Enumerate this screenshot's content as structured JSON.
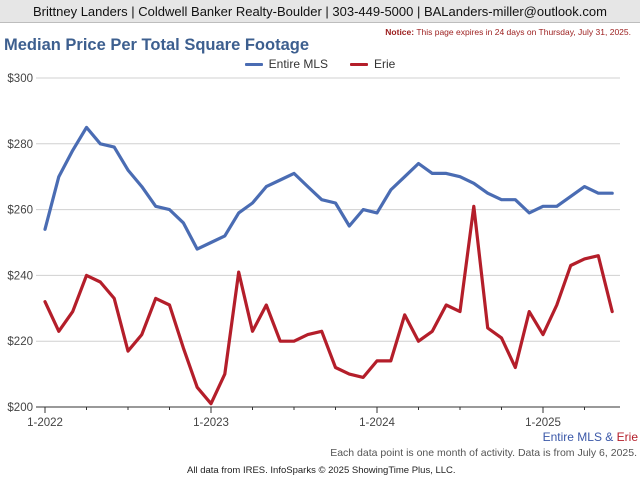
{
  "header": {
    "contact": "Brittney Landers | Coldwell Banker Realty-Boulder | 303-449-5000 | BALanders-miller@outlook.com"
  },
  "notice": {
    "label": "Notice:",
    "text": "This page expires in 24 days on Thursday, July 31, 2025."
  },
  "chart_title": "Median Price Per Total Square Footage",
  "footer": {
    "series_legend_a": "Entire MLS",
    "series_legend_amp": "&",
    "series_legend_b": "Erie",
    "note": "Each data point is one month of activity. Data is from July 6, 2025.",
    "source": "All data from IRES. InfoSparks © 2025 ShowingTime Plus, LLC."
  },
  "colors": {
    "mls": "#4a6cb3",
    "erie": "#b41e2a",
    "grid": "#d0d0d0",
    "axis": "#333333"
  },
  "chart_data": {
    "type": "line",
    "title": "Median Price Per Total Square Footage",
    "xlabel": "",
    "ylabel": "",
    "x_ticks": [
      "1-2022",
      "1-2023",
      "1-2024",
      "1-2025"
    ],
    "y_ticks": [
      "$200",
      "$220",
      "$240",
      "$260",
      "$280",
      "$300"
    ],
    "ylim": [
      200,
      300
    ],
    "grid": true,
    "legend": "top-center",
    "x_start": "2022-01",
    "series": [
      {
        "name": "Entire MLS",
        "values": [
          254,
          270,
          278,
          285,
          280,
          279,
          272,
          267,
          261,
          260,
          256,
          248,
          250,
          252,
          259,
          262,
          267,
          269,
          271,
          267,
          263,
          262,
          255,
          260,
          259,
          266,
          270,
          274,
          271,
          271,
          270,
          268,
          265,
          263,
          263,
          259,
          261,
          261,
          264,
          267,
          265,
          265
        ]
      },
      {
        "name": "Erie",
        "values": [
          232,
          223,
          229,
          240,
          238,
          233,
          217,
          222,
          233,
          231,
          218,
          206,
          201,
          210,
          241,
          223,
          231,
          220,
          220,
          222,
          223,
          212,
          210,
          209,
          214,
          214,
          228,
          220,
          223,
          231,
          229,
          261,
          224,
          221,
          212,
          229,
          222,
          231,
          243,
          245,
          246,
          229
        ]
      }
    ]
  }
}
